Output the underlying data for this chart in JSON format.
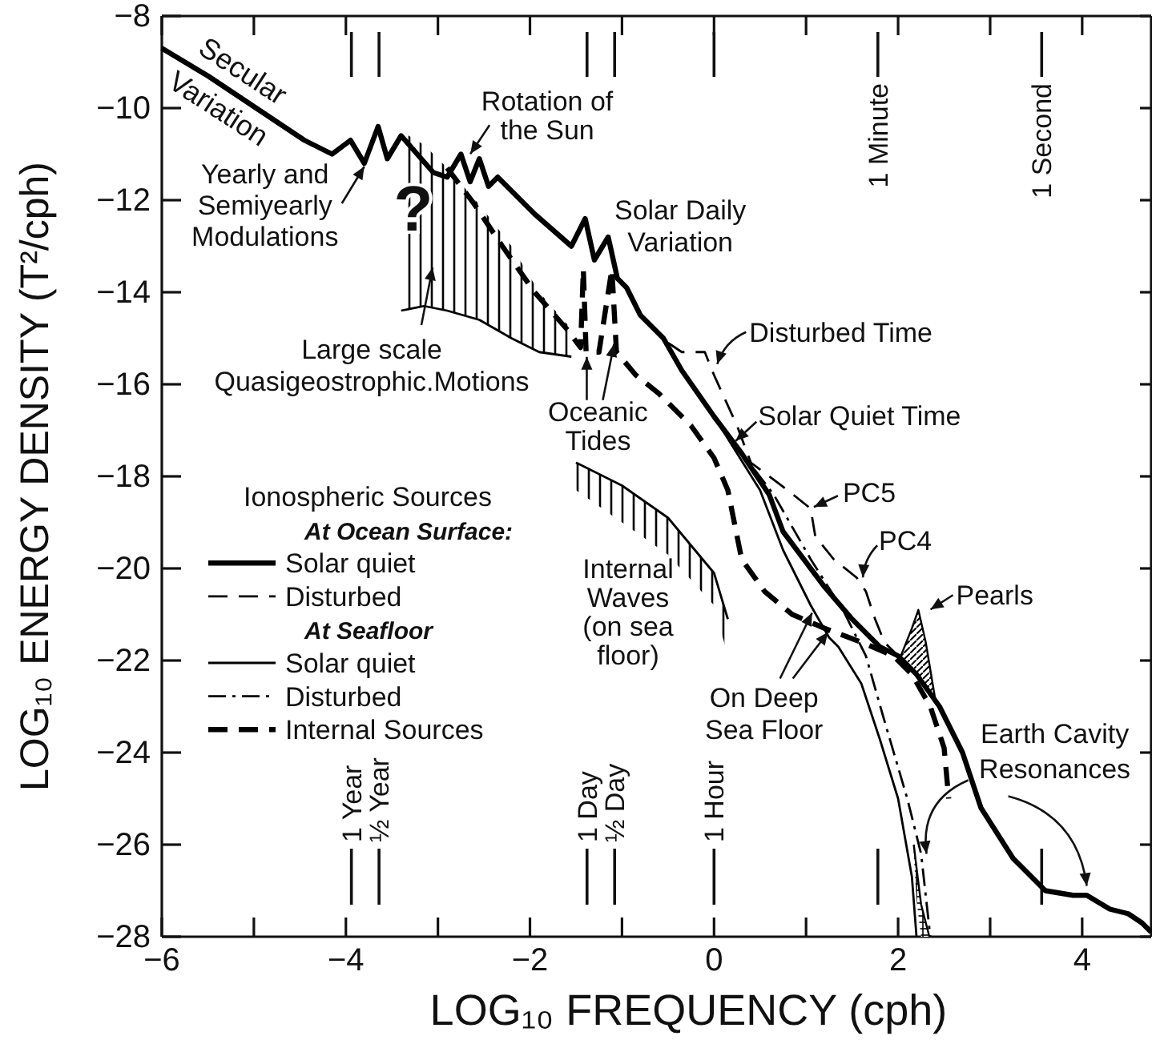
{
  "chart_data": {
    "type": "line",
    "xlabel": "LOG₁₀ FREQUENCY (cph)",
    "ylabel": "LOG₁₀ ENERGY DENSITY (T²/cph)",
    "legend_title": "Ionospheric Sources",
    "legend": "left",
    "xlim": [
      -6,
      4.75
    ],
    "ylim": [
      -28,
      -8
    ],
    "xticks": [
      -6,
      {
        "value": -5,
        "label": null
      },
      -4,
      {
        "value": -3,
        "label": null
      },
      -2,
      {
        "value": -1,
        "label": null
      },
      0,
      {
        "value": 1,
        "label": null
      },
      2,
      {
        "value": 3,
        "label": null
      },
      4
    ],
    "yticks": [
      -28,
      -26,
      -24,
      -22,
      -20,
      -18,
      -16,
      -14,
      -12,
      -10,
      -8
    ],
    "series": [
      {
        "name": "Solar quiet",
        "color": "#000000",
        "line_style": "solid",
        "x": [
          -6,
          -5.5,
          -4.9,
          -4.45,
          -4.15,
          -3.95,
          -3.8,
          -3.65,
          -3.55,
          -3.4,
          -3.05,
          -2.9,
          -2.75,
          -2.65,
          -2.55,
          -2.45,
          -2.35,
          -2.2,
          -1.95,
          -1.55,
          -1.4,
          -1.3,
          -1.15,
          -1.05,
          -0.95,
          -0.8,
          -0.55,
          -0.35,
          0,
          0.3,
          0.6,
          0.75,
          1.2,
          1.5,
          1.8,
          2,
          2.2,
          2.45,
          2.7,
          2.9,
          3.25,
          3.6,
          3.9,
          4.05,
          4.3,
          4.5,
          4.65,
          4.75
        ],
        "values": [
          -8.7,
          -9.3,
          -10.1,
          -10.7,
          -11,
          -10.7,
          -11.2,
          -10.4,
          -11.1,
          -10.6,
          -11.4,
          -11.5,
          -11,
          -11.6,
          -11.1,
          -11.7,
          -11.5,
          -11.8,
          -12.3,
          -13,
          -12.4,
          -13.3,
          -12.8,
          -13.7,
          -13.9,
          -14.5,
          -15,
          -15.7,
          -16.7,
          -17.5,
          -18.4,
          -19.2,
          -20.4,
          -21.1,
          -21.7,
          -21.9,
          -22.3,
          -23,
          -24,
          -25.2,
          -26.3,
          -27,
          -27.1,
          -27.1,
          -27.4,
          -27.5,
          -27.7,
          -27.9
        ]
      },
      {
        "name": "Disturbed",
        "color": "#000000",
        "line_style": "dashed",
        "x": [
          -0.5,
          -0.35,
          -0.1,
          0,
          0.25,
          0.4,
          0.6,
          0.8,
          1.05,
          1.1,
          1.3,
          1.55,
          1.65,
          1.75,
          1.85,
          2
        ],
        "values": [
          -15.1,
          -15.3,
          -15.3,
          -15.8,
          -16.9,
          -17.7,
          -18,
          -18.3,
          -18.7,
          -19.3,
          -19.8,
          -20.2,
          -20.5,
          -21.1,
          -21.6,
          -21.9
        ]
      },
      {
        "name": "Solar quiet",
        "color": "#000000",
        "line_style": "solid",
        "x": [
          0,
          0.5,
          0.75,
          1.05,
          1.25,
          1.35,
          1.6,
          1.8,
          2,
          2.15,
          2.2
        ],
        "values": [
          -16.7,
          -18.3,
          -19.6,
          -20.8,
          -21.5,
          -21.7,
          -22.5,
          -23.7,
          -25,
          -26.7,
          -28
        ]
      },
      {
        "name": "Disturbed",
        "color": "#000000",
        "line_style": "dashdot",
        "x": [
          0,
          0.65,
          1.05,
          1.4,
          1.65,
          1.85,
          2.1,
          2.25,
          2.35
        ],
        "values": [
          -16.7,
          -18.4,
          -19.8,
          -20.9,
          -21.9,
          -23.3,
          -25,
          -26.2,
          -28
        ]
      },
      {
        "name": "Internal Sources",
        "color": "#000000",
        "line_style": "dashed",
        "x": [
          -2.9,
          -2.6,
          -2.3,
          -1.95,
          -1.6,
          -1.45,
          -1.42,
          -1.39,
          -1.25,
          -1.11,
          -1.06,
          -0.85,
          -0.6,
          -0.25,
          0,
          0.15,
          0.3,
          0.55,
          0.85,
          1.2,
          1.6,
          1.95,
          2.15,
          2.35,
          2.5,
          2.55
        ],
        "values": [
          -11.3,
          -12.1,
          -13,
          -14,
          -14.8,
          -15.2,
          -13.5,
          -15.3,
          -15.3,
          -13.5,
          -15.3,
          -15.8,
          -16.2,
          -16.9,
          -17.6,
          -18.3,
          -19.8,
          -20.5,
          -21,
          -21.3,
          -21.6,
          -21.9,
          -22.3,
          -23,
          -23.9,
          -25
        ]
      },
      {
        "color": "#000000",
        "line_style": "solid",
        "x": [
          -3.4,
          -3.15,
          -2.9,
          -2.55,
          -2.2,
          -1.9,
          -1.55
        ],
        "values": [
          -14.4,
          -14.3,
          -14.4,
          -14.6,
          -15,
          -15.3,
          -15.4
        ],
        "lower": [
          -14.4,
          -14.3,
          -14.4,
          -14.6,
          -15,
          -15.3,
          -15.4
        ],
        "upper": [
          -10.5,
          -10.8,
          -11.3,
          -12.1,
          -13,
          -14,
          -14.8
        ]
      },
      {
        "color": "#000000",
        "line_style": "solid",
        "x": [
          -1.5,
          -1,
          -0.5,
          0,
          0.15
        ],
        "values": [
          -17.7,
          -18.2,
          -18.9,
          -20.1,
          -21.1
        ],
        "lower": [
          -18.3,
          -19,
          -19.7,
          -20.8,
          -21.9
        ],
        "upper": [
          -17.7,
          -18.2,
          -18.9,
          -20.1,
          -21.1
        ]
      },
      {
        "color": "#000000",
        "line_style": "solid",
        "x": [
          2.03,
          2.15,
          2.22,
          2.3,
          2.4
        ],
        "values": [
          -21.9,
          -21.3,
          -20.9,
          -21.6,
          -22.8
        ],
        "lower": [
          -21.9,
          -22.1,
          -22.3,
          -22.5,
          -22.8
        ],
        "upper": [
          -21.9,
          -21.3,
          -20.9,
          -21.6,
          -22.8
        ]
      },
      {
        "color": "#000000",
        "line_style": "solid",
        "x": [
          2.17,
          2.2,
          2.25,
          2.34
        ],
        "values": [
          -26,
          -26.5,
          -27.3,
          -28
        ],
        "lower": [
          -26.2,
          -27.2,
          -28,
          -28
        ],
        "upper": [
          -26,
          -26.5,
          -27.3,
          -28
        ]
      }
    ],
    "ref_lines": [
      {
        "axis": "x",
        "value": -3.94,
        "label": "1 Year"
      },
      {
        "axis": "x",
        "value": -3.64,
        "label": "½ Year"
      },
      {
        "axis": "x",
        "value": -1.38,
        "label": "1 Day"
      },
      {
        "axis": "x",
        "value": -1.08,
        "label": "½ Day"
      },
      {
        "axis": "x",
        "value": 0,
        "label": "1 Hour"
      },
      {
        "axis": "x",
        "value": 1.78,
        "label": "1 Minute"
      },
      {
        "axis": "x",
        "value": 3.56,
        "label": "1 Second"
      }
    ],
    "annotations": [
      {
        "text": "Secular\nVariation",
        "x": -5.2,
        "y": -9.7
      },
      {
        "text": "Yearly and\nSemiyearly\nModulations",
        "x": -3.8,
        "y": -11.2
      },
      {
        "text": "Rotation of\nthe Sun",
        "x": -2.7,
        "y": -11.1
      },
      "?",
      "Large scale\nQuasigeostrophic.Motions",
      {
        "text": "Solar Daily\nVariation",
        "x": -1.15,
        "y": -12.8
      },
      {
        "text": "Oceanic\nTides",
        "x": -1.4,
        "y": -15.3
      },
      {
        "text": "Disturbed  Time",
        "x": 0,
        "y": -15.7
      },
      {
        "text": "Solar Quiet Time",
        "x": 0.2,
        "y": -17.3
      },
      {
        "text": "PC5",
        "x": 1.05,
        "y": -18.7
      },
      {
        "text": "PC4",
        "x": 1.6,
        "y": -20.3
      },
      {
        "text": "Pearls",
        "x": 2.3,
        "y": -21.1
      },
      "Internal\nWaves\n(on sea\nfloor)",
      {
        "text": "On Deep\nSea Floor",
        "x": 1.1,
        "y": -21
      },
      {
        "text": "Earth Cavity\nResonances",
        "x": 4.05,
        "y": -27
      },
      "At Ocean Surface:",
      "At Seafloor"
    ]
  }
}
